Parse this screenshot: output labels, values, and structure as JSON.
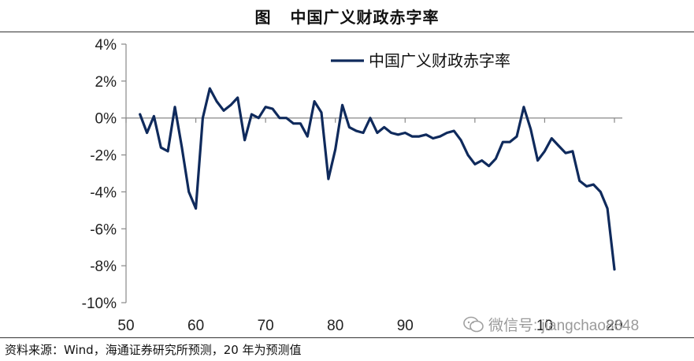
{
  "header": {
    "prefix": "图",
    "title": "中国广义财政赤字率"
  },
  "source": {
    "text": "资料来源：Wind，海通证券研究所预测，20 年为预测值"
  },
  "watermark": {
    "text": "微信号: jiangchao8848",
    "icon": "wechat-icon"
  },
  "colors": {
    "series": "#0f2a5c",
    "axis": "#888888",
    "text": "#111111"
  },
  "chart_data": {
    "type": "line",
    "title": "中国广义财政赤字率",
    "xlabel": "",
    "ylabel": "",
    "xlim": [
      50,
      20
    ],
    "x_tick_labels": [
      "50",
      "60",
      "70",
      "80",
      "90",
      "",
      "10",
      "20"
    ],
    "ylim": [
      -10,
      4
    ],
    "y_ticks": [
      4,
      2,
      0,
      -2,
      -4,
      -6,
      -8,
      -10
    ],
    "y_tick_labels": [
      "4%",
      "2%",
      "0%",
      "-2%",
      "-4%",
      "-6%",
      "-8%",
      "-10%"
    ],
    "grid": false,
    "legend_position": "top-right",
    "series": [
      {
        "name": "中国广义财政赤字率",
        "x": [
          1952,
          1953,
          1954,
          1955,
          1956,
          1957,
          1958,
          1959,
          1960,
          1961,
          1962,
          1963,
          1964,
          1965,
          1966,
          1967,
          1968,
          1969,
          1970,
          1971,
          1972,
          1973,
          1974,
          1975,
          1976,
          1977,
          1978,
          1979,
          1980,
          1981,
          1982,
          1983,
          1984,
          1985,
          1986,
          1987,
          1988,
          1989,
          1990,
          1991,
          1992,
          1993,
          1994,
          1995,
          1996,
          1997,
          1998,
          1999,
          2000,
          2001,
          2002,
          2003,
          2004,
          2005,
          2006,
          2007,
          2008,
          2009,
          2010,
          2011,
          2012,
          2013,
          2014,
          2015,
          2016,
          2017,
          2018,
          2019,
          2020
        ],
        "values": [
          0.2,
          -0.8,
          0.1,
          -1.6,
          -1.8,
          0.6,
          -1.6,
          -4.0,
          -4.9,
          0.0,
          1.6,
          0.9,
          0.4,
          0.7,
          1.1,
          -1.2,
          0.2,
          0.0,
          0.6,
          0.5,
          0.0,
          0.0,
          -0.3,
          -0.3,
          -1.0,
          0.9,
          0.3,
          -3.3,
          -1.7,
          0.7,
          -0.5,
          -0.7,
          -0.8,
          0.0,
          -0.8,
          -0.5,
          -0.8,
          -0.9,
          -0.8,
          -1.0,
          -1.0,
          -0.9,
          -1.1,
          -1.0,
          -0.8,
          -0.7,
          -1.2,
          -2.0,
          -2.5,
          -2.3,
          -2.6,
          -2.2,
          -1.3,
          -1.3,
          -1.0,
          0.6,
          -0.6,
          -2.3,
          -1.8,
          -1.1,
          -1.5,
          -1.9,
          -1.8,
          -3.4,
          -3.7,
          -3.6,
          -4.0,
          -4.9,
          -8.2
        ]
      }
    ]
  }
}
